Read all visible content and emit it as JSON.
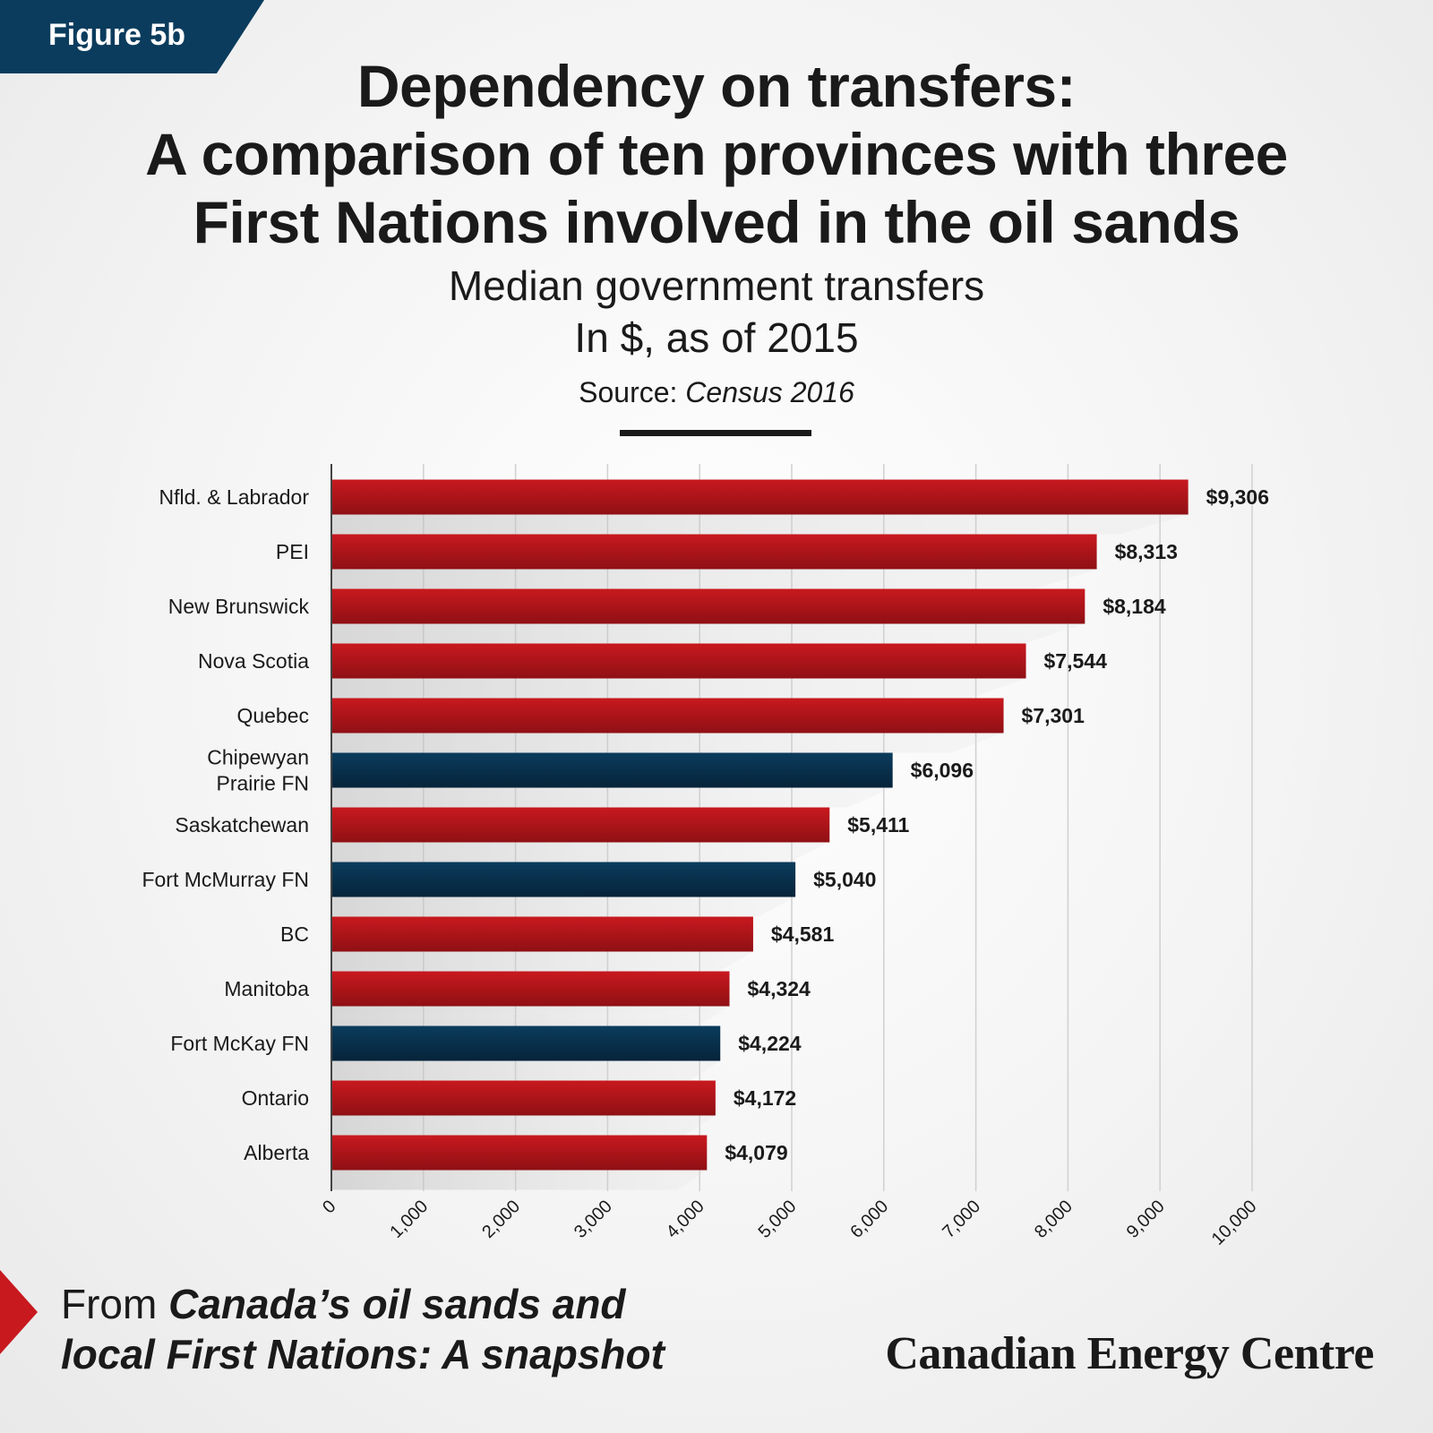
{
  "figure_label": "Figure 5b",
  "title_lines": [
    "Dependency on transfers:",
    "A comparison of ten provinces with three",
    "First Nations involved in the oil sands"
  ],
  "subtitle_lines": [
    "Median government transfers",
    "In $, as of 2015"
  ],
  "source": {
    "label": "Source:",
    "value": "Census 2016"
  },
  "footer": {
    "prefix": "From ",
    "line1_em": "Canada’s oil sands and",
    "line2_em": "local First Nations: A snapshot"
  },
  "brand": "Canadian Energy Centre",
  "colors": {
    "province": "#c8191f",
    "first_nation": "#0b3c5d",
    "figure_tag": "#0b3c5d",
    "arrow": "#c8191f"
  },
  "chart_data": {
    "type": "bar",
    "orientation": "horizontal",
    "categories": [
      [
        "Nfld. & Labrador"
      ],
      [
        "PEI"
      ],
      [
        "New Brunswick"
      ],
      [
        "Nova Scotia"
      ],
      [
        "Quebec"
      ],
      [
        "Chipewyan",
        "Prairie FN"
      ],
      [
        "Saskatchewan"
      ],
      [
        "Fort McMurray FN"
      ],
      [
        "BC"
      ],
      [
        "Manitoba"
      ],
      [
        "Fort McKay FN"
      ],
      [
        "Ontario"
      ],
      [
        "Alberta"
      ]
    ],
    "values": [
      9306,
      8313,
      8184,
      7544,
      7301,
      6096,
      5411,
      5040,
      4581,
      4324,
      4224,
      4172,
      4079
    ],
    "value_labels": [
      "$9,306",
      "$8,313",
      "$8,184",
      "$7,544",
      "$7,301",
      "$6,096",
      "$5,411",
      "$5,040",
      "$4,581",
      "$4,324",
      "$4,224",
      "$4,172",
      "$4,079"
    ],
    "groups": [
      "province",
      "province",
      "province",
      "province",
      "province",
      "first_nation",
      "province",
      "first_nation",
      "province",
      "province",
      "first_nation",
      "province",
      "province"
    ],
    "xlim": [
      0,
      10000
    ],
    "xticks": [
      0,
      1000,
      2000,
      3000,
      4000,
      5000,
      6000,
      7000,
      8000,
      9000,
      10000
    ],
    "xtick_labels": [
      "0",
      "1,000",
      "2,000",
      "3,000",
      "4,000",
      "5,000",
      "6,000",
      "7,000",
      "8,000",
      "9,000",
      "10,000"
    ],
    "grid": true,
    "xlabel": "",
    "ylabel": ""
  }
}
